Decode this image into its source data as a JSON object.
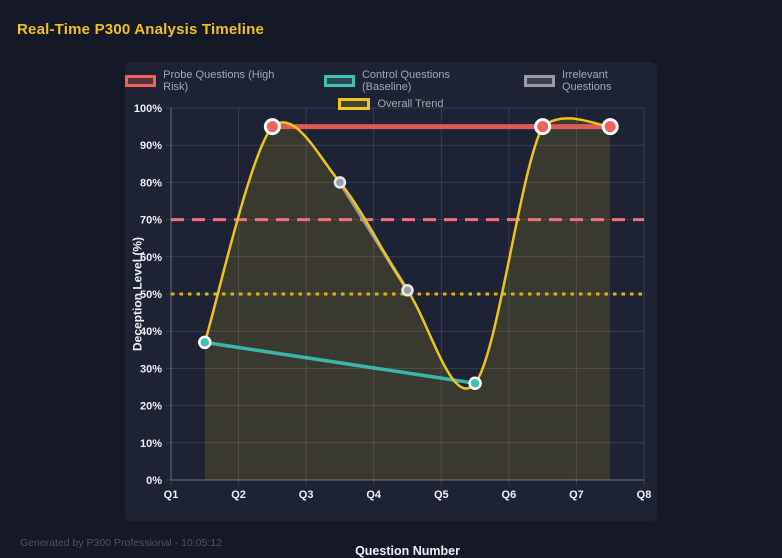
{
  "page": {
    "title": "Real-Time P300 Analysis Timeline",
    "footer": "Generated by P300 Professional - 10:05:12"
  },
  "colors": {
    "page_bg": "#141827",
    "card_bg": "#1d2234",
    "title": "#f0c41e",
    "grid": "rgba(255,255,255,0.12)",
    "axis": "rgba(255,255,255,0.28)",
    "tick_text": "#eef0f5",
    "legend_text": "#a4a8b4",
    "footer_text": "#4f5566"
  },
  "chart_data": {
    "type": "line",
    "title": "Real-Time P300 Analysis Timeline",
    "xlabel": "Question Number",
    "ylabel": "Deception Level (%)",
    "x_ticks": [
      "Q1",
      "Q2",
      "Q3",
      "Q4",
      "Q5",
      "Q6",
      "Q7",
      "Q8"
    ],
    "y_ticks": [
      "0%",
      "10%",
      "20%",
      "30%",
      "40%",
      "50%",
      "60%",
      "70%",
      "80%",
      "90%",
      "100%"
    ],
    "xlim": [
      1,
      8
    ],
    "ylim": [
      0,
      100
    ],
    "grid": true,
    "legend_position": "top",
    "series": [
      {
        "name": "Probe Questions (High Risk)",
        "color": "#f0605d",
        "swatch_fill": "rgba(240,96,93,0.25)",
        "x": [
          2.5,
          6.5,
          7.5
        ],
        "y": [
          95,
          95,
          95
        ],
        "line_width": 5,
        "point_radius": 7,
        "point_border": "#ffffff",
        "point_border_width": 3,
        "smooth": false
      },
      {
        "name": "Control Questions (Baseline)",
        "color": "#3ec3b6",
        "swatch_fill": "rgba(62,195,182,0.25)",
        "x": [
          1.5,
          5.5
        ],
        "y": [
          37,
          26
        ],
        "line_width": 3.5,
        "point_radius": 5.5,
        "point_border": "#ffffff",
        "point_border_width": 2.5,
        "smooth": false
      },
      {
        "name": "Irrelevant Questions",
        "color": "#9b9ba5",
        "swatch_fill": "rgba(155,155,165,0.25)",
        "x": [
          3.5,
          4.5
        ],
        "y": [
          80,
          51
        ],
        "line_width": 3.5,
        "point_radius": 5,
        "point_border": "#e8e8ec",
        "point_border_width": 2.5,
        "smooth": false
      },
      {
        "name": "Overall Trend",
        "color": "#eec51f",
        "swatch_fill": "rgba(238,197,31,0.2)",
        "x": [
          1.5,
          2.5,
          3.5,
          4.5,
          5.5,
          6.5,
          7.5
        ],
        "y": [
          37,
          95,
          80,
          51,
          26,
          95,
          95
        ],
        "line_width": 2.5,
        "point_radius": 0,
        "smooth": true,
        "area_fill": "rgba(238,197,31,0.14)"
      }
    ],
    "thresholds": [
      {
        "value": 70,
        "color": "#f3707c",
        "style": "dashed",
        "width": 3
      },
      {
        "value": 50,
        "color": "#dcb50c",
        "style": "dotted",
        "width": 3
      }
    ]
  }
}
